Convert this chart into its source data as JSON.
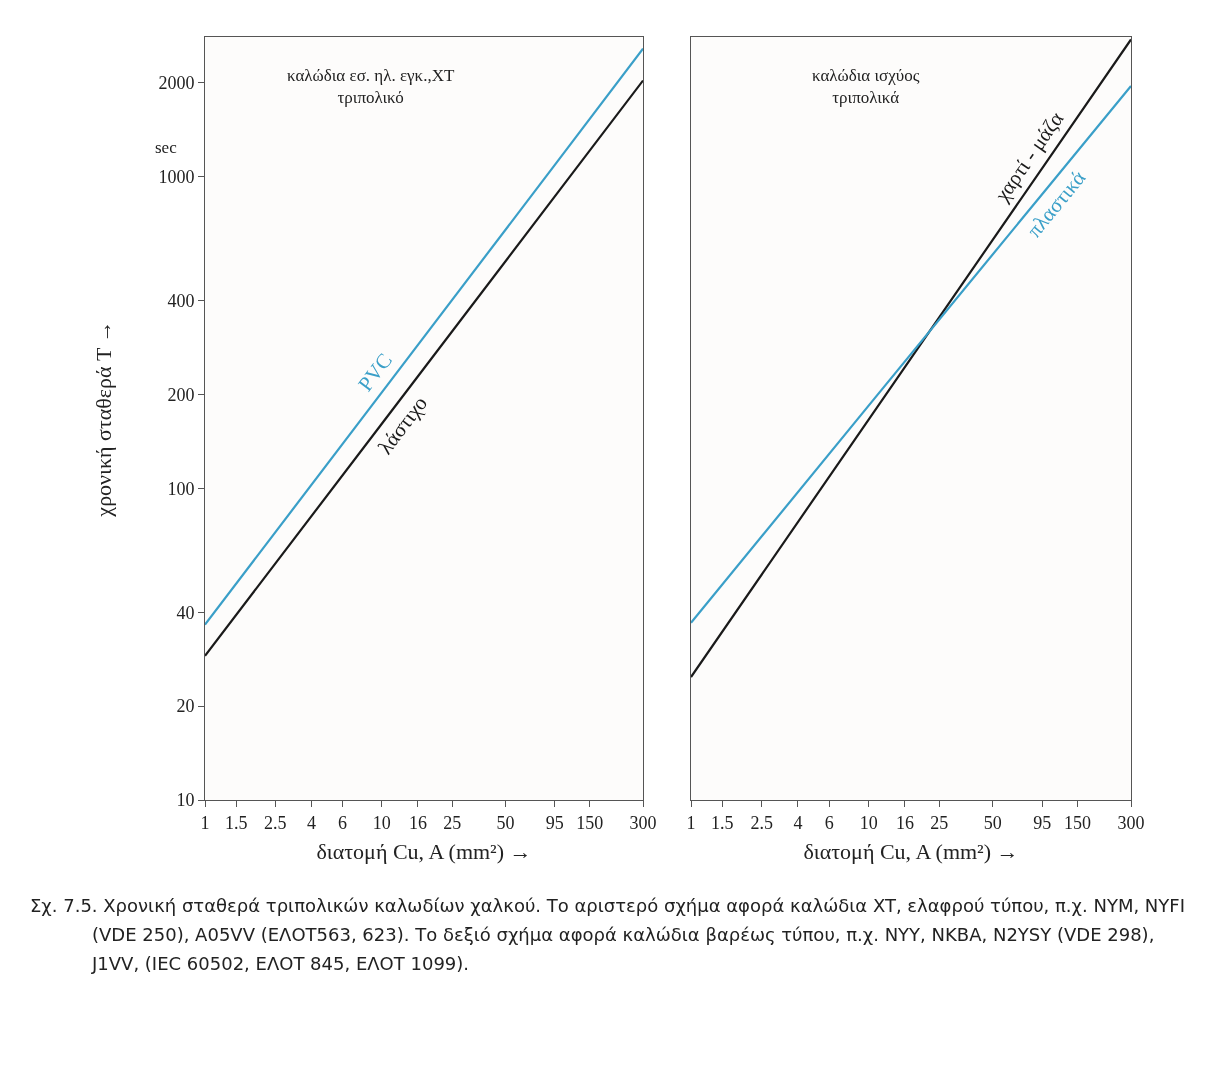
{
  "chart_data": [
    {
      "type": "line",
      "title": "καλώδια εσ. ηλ. εγκ.,XT\nτριπολικό",
      "xlabel": "διατομή Cu, A (mm²) →",
      "ylabel": "χρονική σταθερά T →",
      "annotations": [
        "sec"
      ],
      "x": [
        1,
        10,
        100,
        300
      ],
      "series": [
        {
          "name": "PVC",
          "color": "#3a9fc8",
          "values": [
            36.5,
            203,
            1130,
            2570
          ]
        },
        {
          "name": "λάστιχο",
          "color": "#1a1a1a",
          "values": [
            29,
            161,
            895,
            2030
          ]
        }
      ],
      "log": "xy",
      "xlim": [
        1,
        300
      ],
      "ylim": [
        10,
        2800
      ],
      "xticks": [
        1,
        1.5,
        2.5,
        4,
        6,
        10,
        16,
        25,
        50,
        95,
        150,
        300
      ],
      "yticks": [
        10,
        20,
        40,
        100,
        200,
        400,
        1000,
        2000
      ],
      "grid": false,
      "legend": false,
      "line_style": "solid",
      "marker": "none"
    },
    {
      "type": "line",
      "title": "καλώδια ισχύος\nτριπολικά",
      "xlabel": "διατομή Cu, A (mm²) →",
      "annotations": [
        "Σχ. 7.5. Χρονική σταθερά τριπολικών καλωδίων χαλκού. Το αριστερό σχήμα αφορά καλώδια XT, ελαφρού τύπου, π.χ. NYM, NYFI (VDE 250), A05VV (ΕΛΟΤ563, 623). Το δεξιό σχήμα αφορά καλώδια βαρέως τύπου, π.χ. NYY, NKBA, N2YSY (VDE 298), J1VV, (IEC 60502, ΕΛΟΤ 845, ΕΛΟΤ 1099)."
      ],
      "x": [
        1,
        10,
        100,
        300
      ],
      "series": [
        {
          "name": "χαρτί - μάζα",
          "color": "#1a1a1a",
          "values": [
            24.8,
            166,
            1110,
            2750
          ]
        },
        {
          "name": "πλαστικά",
          "color": "#3a9fc8",
          "values": [
            37,
            184,
            910,
            1950
          ]
        }
      ],
      "log": "xy",
      "xlim": [
        1,
        300
      ],
      "ylim": [
        10,
        2800
      ],
      "xticks": [
        1,
        1.5,
        2.5,
        4,
        6,
        10,
        16,
        25,
        50,
        95,
        150,
        300
      ],
      "tick_labels": "x",
      "grid": false,
      "legend": false,
      "line_style": "solid",
      "marker": "none"
    }
  ]
}
